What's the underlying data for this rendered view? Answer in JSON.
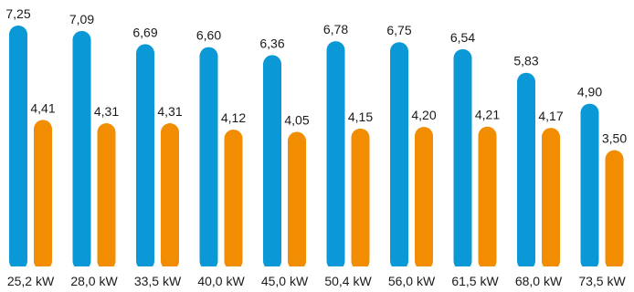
{
  "chart_data": {
    "type": "bar",
    "categories": [
      "25,2 kW",
      "28,0 kW",
      "33,5 kW",
      "40,0 kW",
      "45,0 kW",
      "50,4 kW",
      "56,0 kW",
      "61,5 kW",
      "68,0 kW",
      "73,5 kW"
    ],
    "series": [
      {
        "color": "#0a99d6",
        "values": [
          7.25,
          7.09,
          6.69,
          6.6,
          6.36,
          6.78,
          6.75,
          6.54,
          5.83,
          4.9
        ],
        "labels": [
          "7,25",
          "7,09",
          "6,69",
          "6,60",
          "6,36",
          "6,78",
          "6,75",
          "6,54",
          "5,83",
          "4,90"
        ]
      },
      {
        "color": "#f28c00",
        "values": [
          4.41,
          4.31,
          4.31,
          4.12,
          4.05,
          4.15,
          4.2,
          4.21,
          4.17,
          3.5
        ],
        "labels": [
          "4,41",
          "4,31",
          "4,31",
          "4,12",
          "4,05",
          "4,15",
          "4,20",
          "4,21",
          "4,17",
          "3,50"
        ]
      }
    ],
    "ylim": [
      0,
      7.5
    ],
    "grid": false,
    "legend": "none",
    "title": "",
    "xlabel": "",
    "ylabel": ""
  }
}
